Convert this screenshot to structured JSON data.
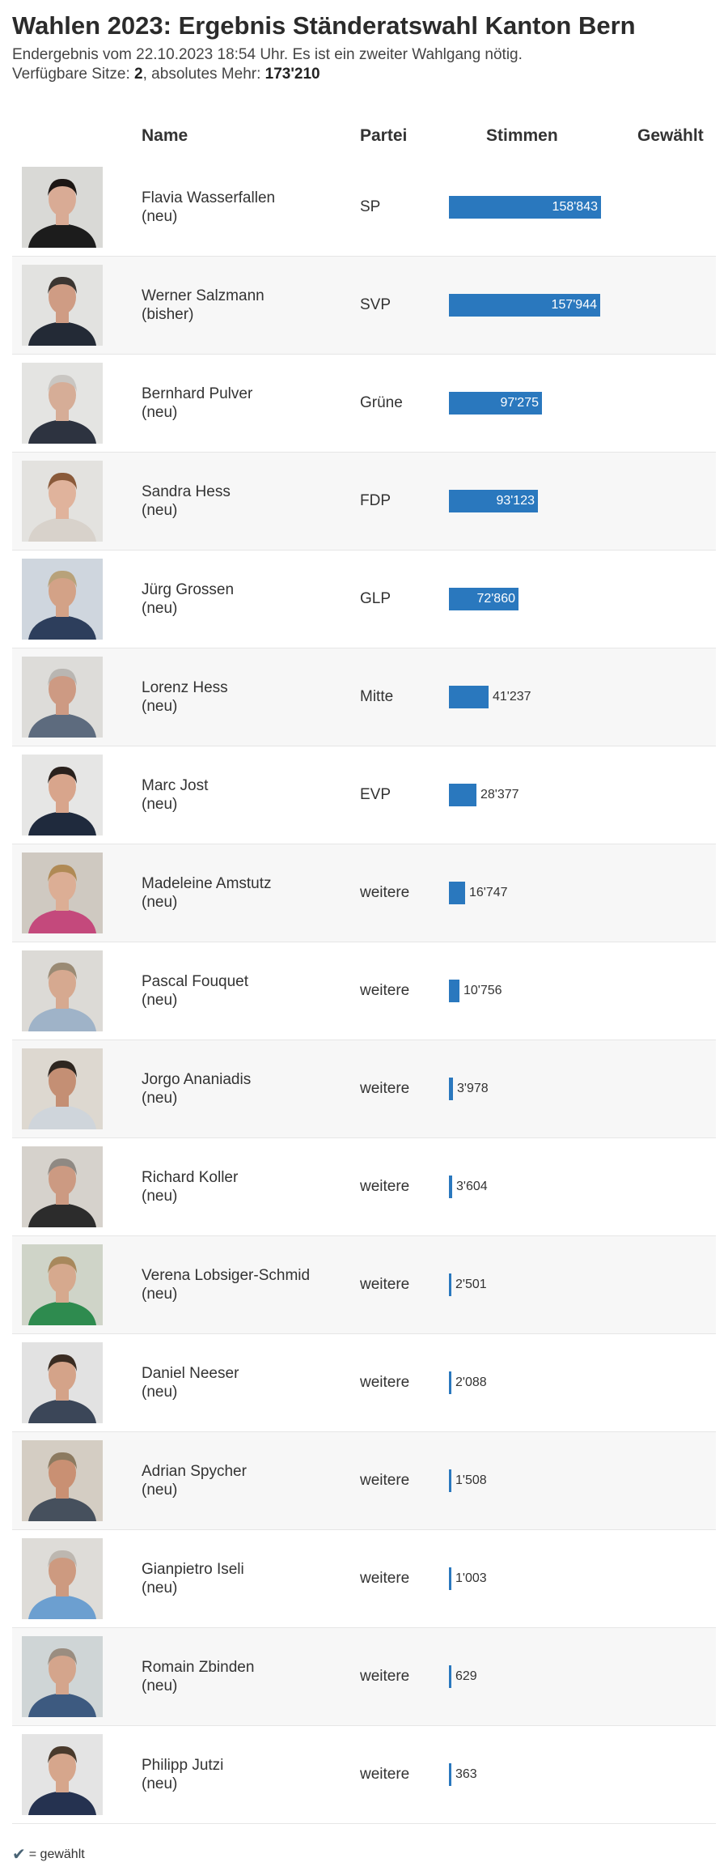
{
  "title": "Wahlen 2023: Ergebnis Ständeratswahl Kanton Bern",
  "subtitle_line1": "Endergebnis vom 22.10.2023 18:54 Uhr. Es ist ein zweiter Wahlgang nötig.",
  "seats_label": "Verfügbare Sitze: ",
  "seats_value": "2",
  "majority_label": ", absolutes Mehr: ",
  "majority_value": "173'210",
  "columns": {
    "name": "Name",
    "party": "Partei",
    "votes": "Stimmen",
    "elected": "Gewählt"
  },
  "legend": {
    "symbol": "✔",
    "text": "= gewählt"
  },
  "colors": {
    "bar": "#2a78be"
  },
  "chart_data": {
    "type": "bar",
    "orientation": "horizontal",
    "categories": [
      "Flavia Wasserfallen",
      "Werner Salzmann",
      "Bernhard Pulver",
      "Sandra Hess",
      "Jürg Grossen",
      "Lorenz Hess",
      "Marc Jost",
      "Madeleine Amstutz",
      "Pascal Fouquet",
      "Jorgo Ananiadis",
      "Richard Koller",
      "Verena Lobsiger-Schmid",
      "Daniel Neeser",
      "Adrian Spycher",
      "Gianpietro Iseli",
      "Romain Zbinden",
      "Philipp Jutzi"
    ],
    "values": [
      158843,
      157944,
      97275,
      93123,
      72860,
      41237,
      28377,
      16747,
      10756,
      3978,
      3604,
      2501,
      2088,
      1508,
      1003,
      629,
      363
    ],
    "value_labels": [
      "158'843",
      "157'944",
      "97'275",
      "93'123",
      "72'860",
      "41'237",
      "28'377",
      "16'747",
      "10'756",
      "3'978",
      "3'604",
      "2'501",
      "2'088",
      "1'508",
      "1'003",
      "629",
      "363"
    ],
    "xlim": [
      0,
      158843
    ],
    "xlabel": "Stimmen"
  },
  "candidates": [
    {
      "name": "Flavia Wasserfallen",
      "status": "(neu)",
      "party": "SP",
      "votes": 158843,
      "votes_label": "158'843",
      "photo": {
        "bg": "#d9d9d6",
        "hair": "#1c1614",
        "skin": "#d9ab95",
        "shirt": "#1c1c1c"
      }
    },
    {
      "name": "Werner Salzmann",
      "status": "(bisher)",
      "party": "SVP",
      "votes": 157944,
      "votes_label": "157'944",
      "photo": {
        "bg": "#e2e2e0",
        "hair": "#3b3531",
        "skin": "#cf9c84",
        "shirt": "#232a36"
      }
    },
    {
      "name": "Bernhard Pulver",
      "status": "(neu)",
      "party": "Grüne",
      "votes": 97275,
      "votes_label": "97'275",
      "photo": {
        "bg": "#e4e4e2",
        "hair": "#c9c6c2",
        "skin": "#d6ad97",
        "shirt": "#2d3340"
      }
    },
    {
      "name": "Sandra Hess",
      "status": "(neu)",
      "party": "FDP",
      "votes": 93123,
      "votes_label": "93'123",
      "photo": {
        "bg": "#e3e2df",
        "hair": "#8a5a3a",
        "skin": "#e0b39c",
        "shirt": "#d8d2cb"
      }
    },
    {
      "name": "Jürg Grossen",
      "status": "(neu)",
      "party": "GLP",
      "votes": 72860,
      "votes_label": "72'860",
      "photo": {
        "bg": "#cfd6de",
        "hair": "#b8a27a",
        "skin": "#d3a287",
        "shirt": "#2d3e5c"
      }
    },
    {
      "name": "Lorenz Hess",
      "status": "(neu)",
      "party": "Mitte",
      "votes": 41237,
      "votes_label": "41'237",
      "photo": {
        "bg": "#dddcd9",
        "hair": "#b9b6b2",
        "skin": "#cd9a83",
        "shirt": "#5d6b7e"
      }
    },
    {
      "name": "Marc Jost",
      "status": "(neu)",
      "party": "EVP",
      "votes": 28377,
      "votes_label": "28'377",
      "photo": {
        "bg": "#e6e6e5",
        "hair": "#2a211d",
        "skin": "#d8a58c",
        "shirt": "#1f2a3d"
      }
    },
    {
      "name": "Madeleine Amstutz",
      "status": "(neu)",
      "party": "weitere",
      "votes": 16747,
      "votes_label": "16'747",
      "photo": {
        "bg": "#cfc9c1",
        "hair": "#b08a55",
        "skin": "#dcae95",
        "shirt": "#c4497c"
      }
    },
    {
      "name": "Pascal Fouquet",
      "status": "(neu)",
      "party": "weitere",
      "votes": 10756,
      "votes_label": "10'756",
      "photo": {
        "bg": "#dcdad6",
        "hair": "#9a8a74",
        "skin": "#d6a990",
        "shirt": "#9fb3c8"
      }
    },
    {
      "name": "Jorgo Ananiadis",
      "status": "(neu)",
      "party": "weitere",
      "votes": 3978,
      "votes_label": "3'978",
      "photo": {
        "bg": "#ddd8d0",
        "hair": "#2e2620",
        "skin": "#c48f74",
        "shirt": "#cfd5db"
      }
    },
    {
      "name": "Richard Koller",
      "status": "(neu)",
      "party": "weitere",
      "votes": 3604,
      "votes_label": "3'604",
      "photo": {
        "bg": "#d6d2cc",
        "hair": "#8f8983",
        "skin": "#cc9a82",
        "shirt": "#2c2c2c"
      }
    },
    {
      "name": "Verena Lobsiger-Schmid",
      "status": "(neu)",
      "party": "weitere",
      "votes": 2501,
      "votes_label": "2'501",
      "photo": {
        "bg": "#cfd4c8",
        "hair": "#a8885c",
        "skin": "#d6a98e",
        "shirt": "#2e8b4f"
      }
    },
    {
      "name": "Daniel Neeser",
      "status": "(neu)",
      "party": "weitere",
      "votes": 2088,
      "votes_label": "2'088",
      "photo": {
        "bg": "#e2e2e2",
        "hair": "#3a2c22",
        "skin": "#d4a389",
        "shirt": "#3b4658"
      }
    },
    {
      "name": "Adrian Spycher",
      "status": "(neu)",
      "party": "weitere",
      "votes": 1508,
      "votes_label": "1'508",
      "photo": {
        "bg": "#d4cdc3",
        "hair": "#8c7a60",
        "skin": "#c99073",
        "shirt": "#46505d"
      }
    },
    {
      "name": "Gianpietro Iseli",
      "status": "(neu)",
      "party": "weitere",
      "votes": 1003,
      "votes_label": "1'003",
      "photo": {
        "bg": "#dedcd8",
        "hair": "#bdb7b0",
        "skin": "#cd9a80",
        "shirt": "#6c9fd0"
      }
    },
    {
      "name": "Romain Zbinden",
      "status": "(neu)",
      "party": "weitere",
      "votes": 629,
      "votes_label": "629",
      "photo": {
        "bg": "#cfd5d6",
        "hair": "#9a8d80",
        "skin": "#d4a58c",
        "shirt": "#3d5a80"
      }
    },
    {
      "name": "Philipp Jutzi",
      "status": "(neu)",
      "party": "weitere",
      "votes": 363,
      "votes_label": "363",
      "photo": {
        "bg": "#e4e4e4",
        "hair": "#4a3a2c",
        "skin": "#d6a68c",
        "shirt": "#253250"
      }
    }
  ]
}
